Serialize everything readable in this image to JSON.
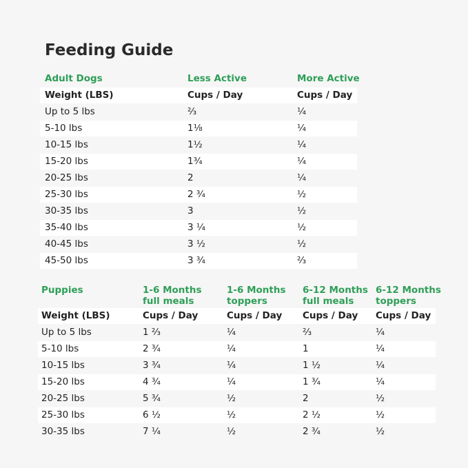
{
  "title": "Feeding Guide",
  "tables": [
    {
      "headers": [
        "Adult Dogs",
        "Less Active",
        "More Active"
      ],
      "subheaders": [
        "Weight (LBS)",
        "Cups / Day",
        "Cups / Day"
      ],
      "rows": [
        [
          "Up to 5 lbs",
          "⅔",
          "¼"
        ],
        [
          "5-10 lbs",
          "1⅛",
          "¼"
        ],
        [
          "10-15 lbs",
          "1½",
          "¼"
        ],
        [
          "15-20 lbs",
          "1¾",
          "¼"
        ],
        [
          "20-25 lbs",
          "2",
          "¼"
        ],
        [
          "25-30 lbs",
          "2 ¾",
          "½"
        ],
        [
          "30-35 lbs",
          "3",
          "½"
        ],
        [
          "35-40 lbs",
          "3 ¼",
          "½"
        ],
        [
          "40-45 lbs",
          "3 ½",
          "½"
        ],
        [
          "45-50 lbs",
          "3 ¾",
          "⅔"
        ]
      ]
    },
    {
      "headers": [
        "Puppies",
        "1-6 Months\nfull meals",
        "1-6 Months\ntoppers",
        "6-12 Months\nfull meals",
        "6-12 Months\ntoppers"
      ],
      "subheaders": [
        "Weight (LBS)",
        "Cups / Day",
        "Cups / Day",
        "Cups / Day",
        "Cups / Day"
      ],
      "rows": [
        [
          "Up to 5 lbs",
          "1 ⅔",
          "¼",
          "⅔",
          "¼"
        ],
        [
          "5-10 lbs",
          "2 ¾",
          "¼",
          "1",
          "¼"
        ],
        [
          "10-15 lbs",
          "3 ¾",
          "¼",
          "1 ½",
          "¼"
        ],
        [
          "15-20 lbs",
          "4 ¾",
          "¼",
          "1 ¾",
          "¼"
        ],
        [
          "20-25 lbs",
          "5 ¾",
          "½",
          "2",
          "½"
        ],
        [
          "25-30 lbs",
          "6 ½",
          "½",
          "2 ½",
          "½"
        ],
        [
          "30-35 lbs",
          "7 ¼",
          "½",
          "2 ¾",
          "½"
        ]
      ]
    }
  ]
}
